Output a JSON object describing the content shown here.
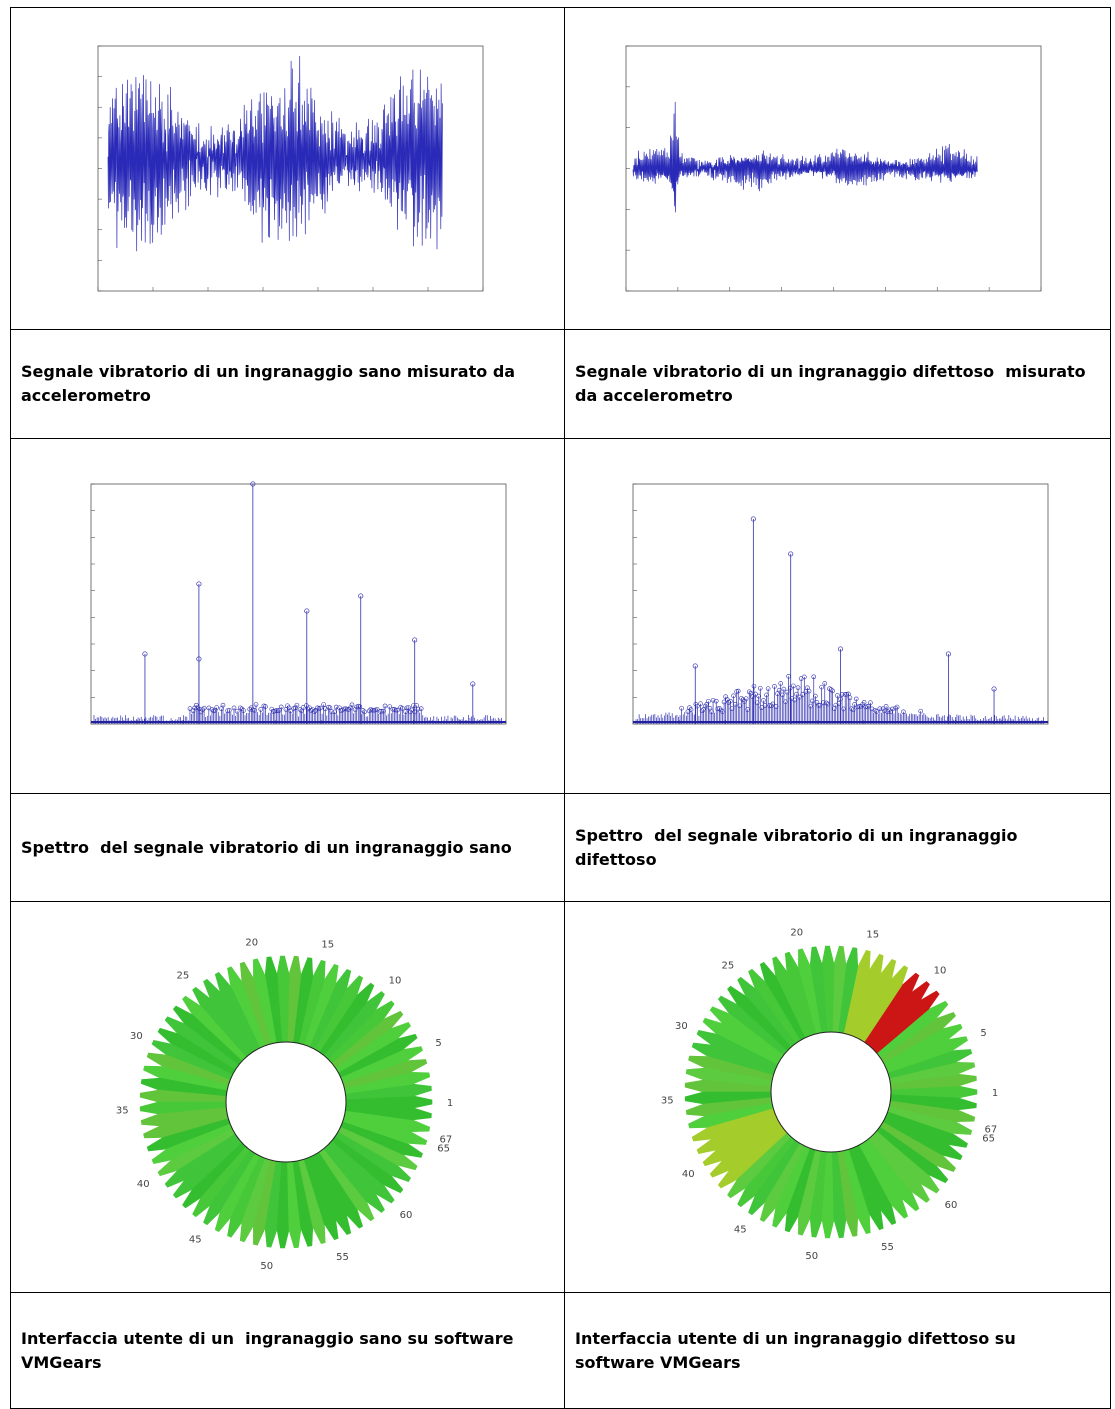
{
  "captions": [
    [
      "Segnale vibratorio di un ingranaggio sano misurato da accelerometro",
      "Segnale vibratorio di un ingranaggio difettoso  misurato da accelerometro"
    ],
    [
      "Spettro  del segnale vibratorio di un ingranaggio sano",
      "Spettro  del segnale vibratorio di un ingranaggio difettoso"
    ],
    [
      "Interfaccia utente di un  ingranaggio sano su software VMGears",
      "Interfaccia utente di un ingranaggio difettoso su software VMGears"
    ]
  ],
  "gears": [
    {
      "teeth": 67,
      "labels": [
        1,
        5,
        10,
        15,
        20,
        25,
        30,
        35,
        40,
        45,
        50,
        55,
        60,
        65,
        67
      ],
      "warning_teeth": [],
      "faulty_teeth": []
    },
    {
      "teeth": 67,
      "labels": [
        1,
        5,
        10,
        15,
        20,
        25,
        30,
        35,
        40,
        45,
        50,
        55,
        60,
        65,
        67
      ],
      "warning_teeth": [
        12,
        13,
        14,
        15,
        38,
        39,
        40,
        41,
        42
      ],
      "faulty_teeth": [
        9,
        10,
        11
      ],
      "warning_color": "#a4cc2a",
      "fault_color": "#cc1616"
    }
  ]
}
